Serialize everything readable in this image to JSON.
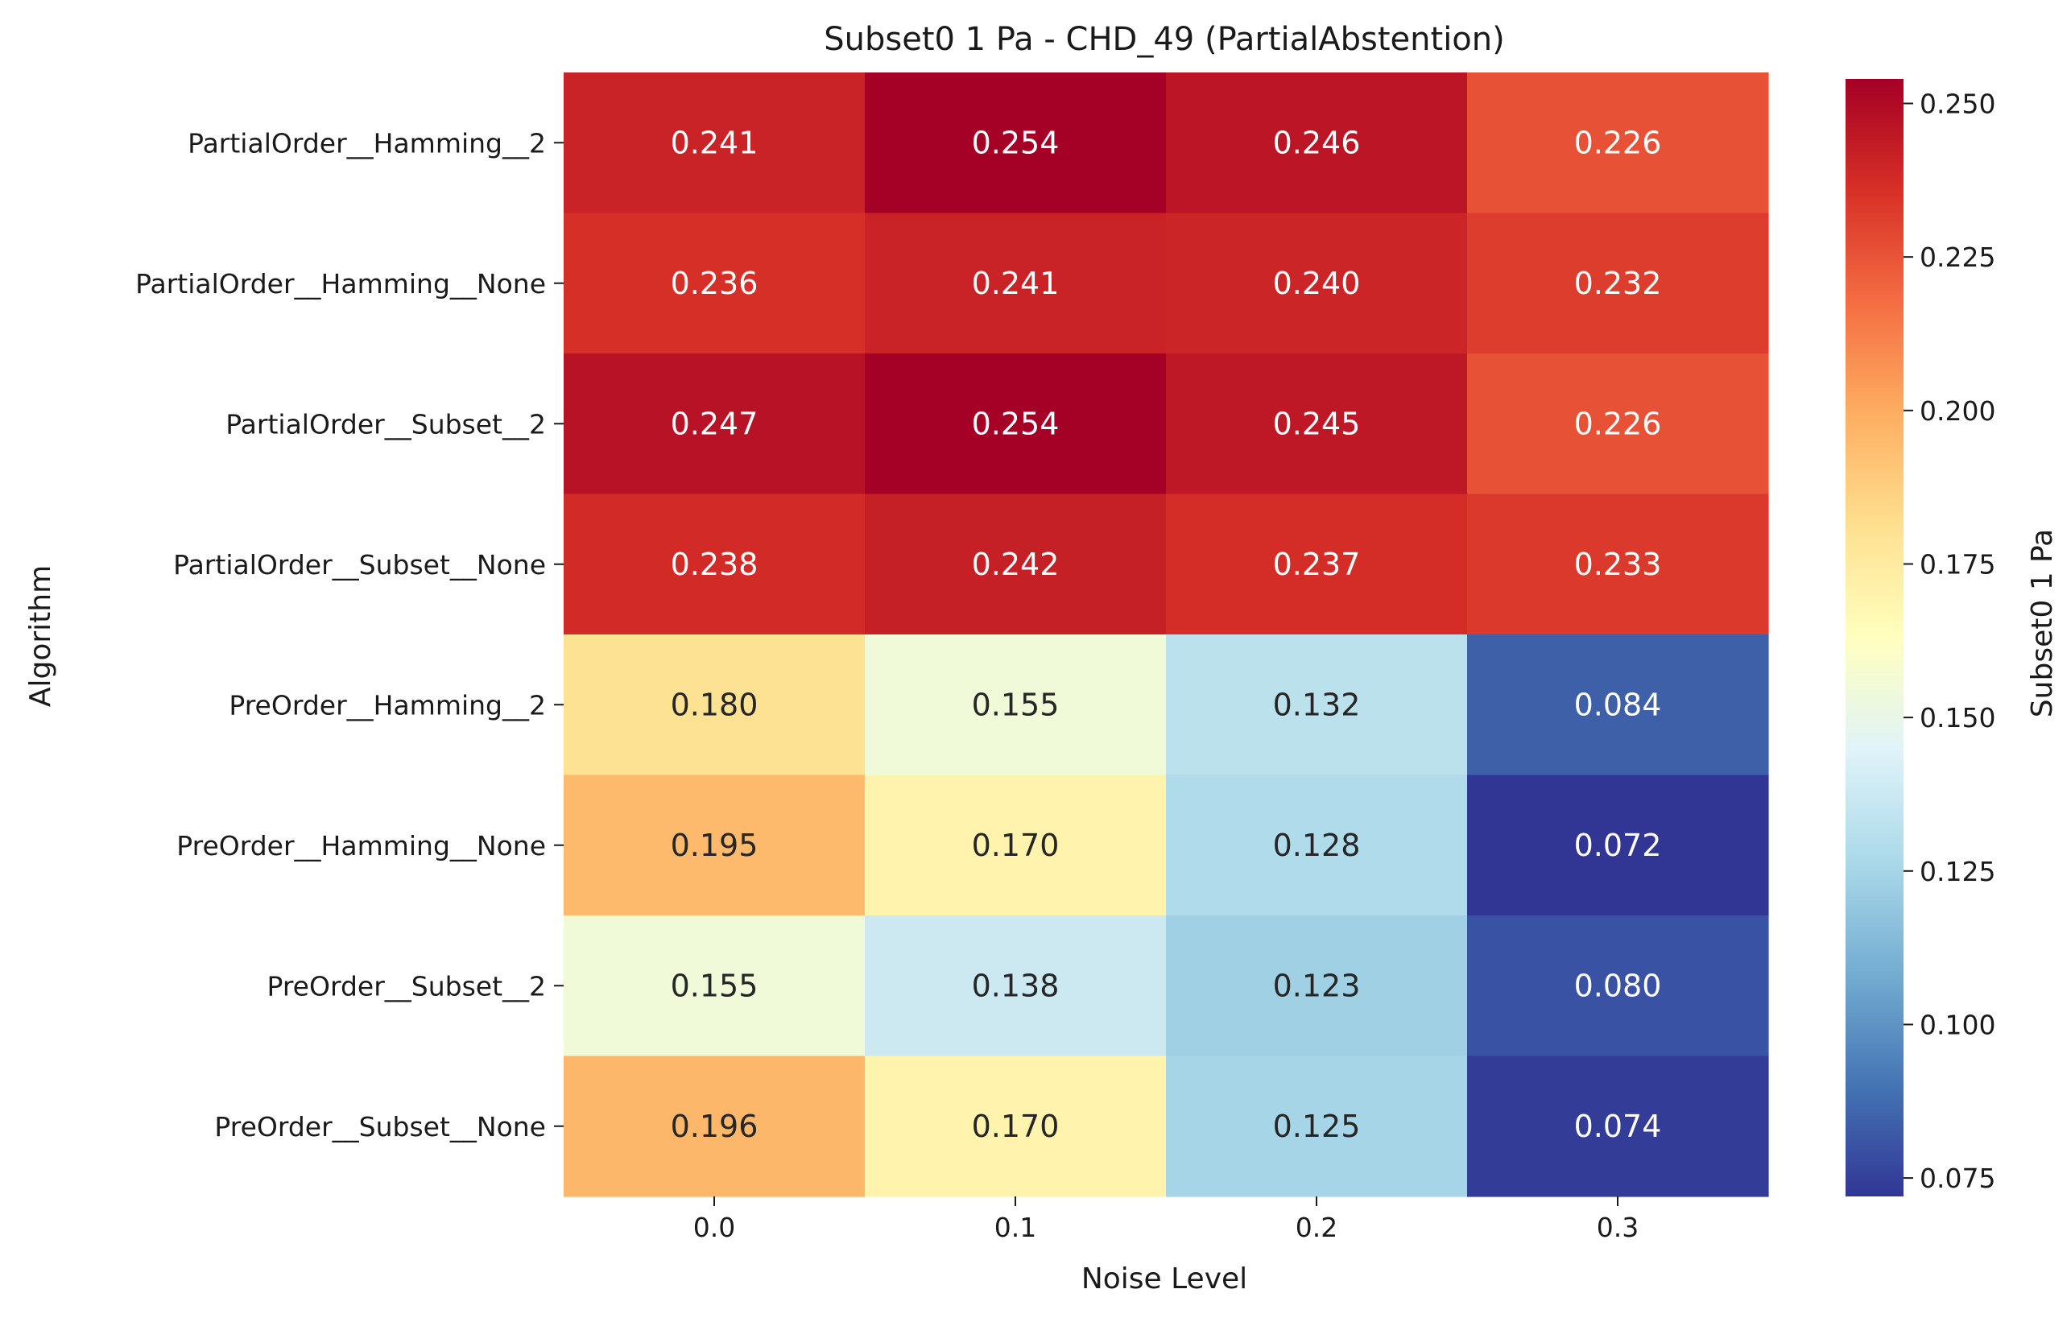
{
  "chart_data": {
    "type": "heatmap",
    "title": "Subset0 1 Pa - CHD_49 (PartialAbstention)",
    "xlabel": "Noise Level",
    "ylabel": "Algorithm",
    "x": [
      "0.0",
      "0.1",
      "0.2",
      "0.3"
    ],
    "y": [
      "PartialOrder__Hamming__2",
      "PartialOrder__Hamming__None",
      "PartialOrder__Subset__2",
      "PartialOrder__Subset__None",
      "PreOrder__Hamming__2",
      "PreOrder__Hamming__None",
      "PreOrder__Subset__2",
      "PreOrder__Subset__None"
    ],
    "values": [
      [
        0.241,
        0.254,
        0.246,
        0.226
      ],
      [
        0.236,
        0.241,
        0.24,
        0.232
      ],
      [
        0.247,
        0.254,
        0.245,
        0.226
      ],
      [
        0.238,
        0.242,
        0.237,
        0.233
      ],
      [
        0.18,
        0.155,
        0.132,
        0.084
      ],
      [
        0.195,
        0.17,
        0.128,
        0.072
      ],
      [
        0.155,
        0.138,
        0.123,
        0.08
      ],
      [
        0.196,
        0.17,
        0.125,
        0.074
      ]
    ],
    "colorbar": {
      "label": "Subset0 1 Pa",
      "range": [
        0.072,
        0.254
      ],
      "ticks": [
        "0.075",
        "0.100",
        "0.125",
        "0.150",
        "0.175",
        "0.200",
        "0.225",
        "0.250"
      ],
      "colormap": "RdYlBu_r"
    },
    "grid": false,
    "legend": "none"
  }
}
